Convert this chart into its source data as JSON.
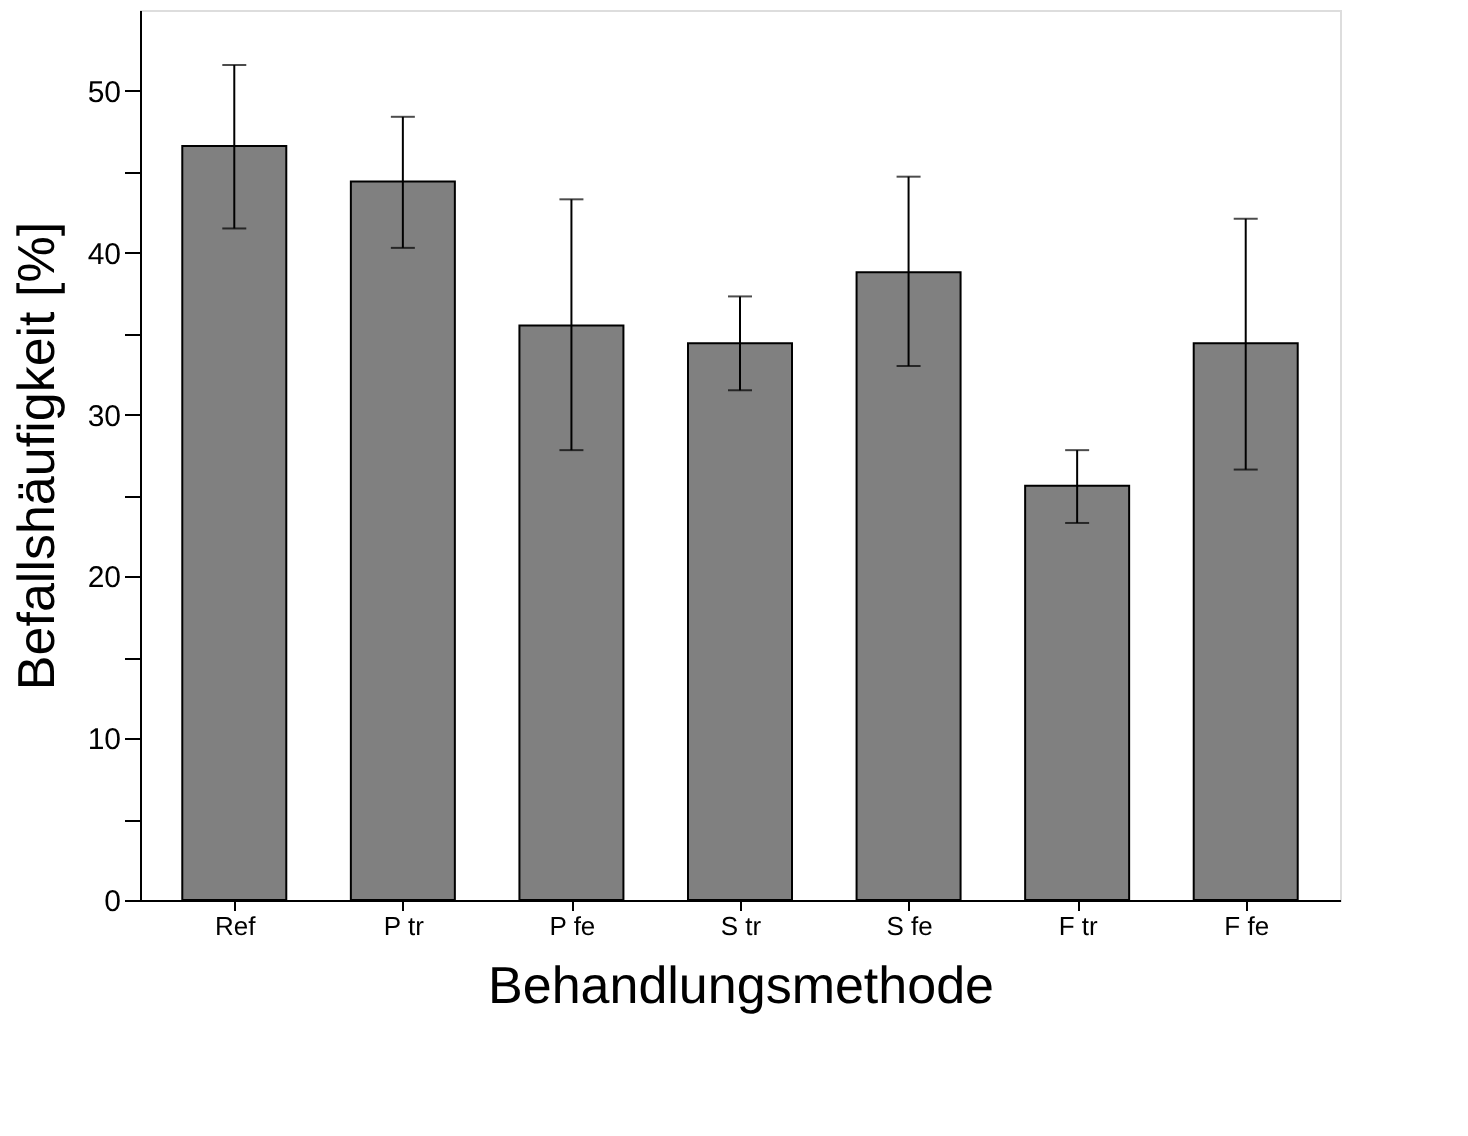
{
  "chart_data": {
    "type": "bar",
    "xlabel": "Behandlungsmethode",
    "ylabel": "Befallshäufigkeit [%]",
    "categories": [
      "Ref",
      "P tr",
      "P fe",
      "S tr",
      "S fe",
      "F tr",
      "F fe"
    ],
    "values": [
      46.6,
      44.4,
      35.5,
      34.4,
      38.8,
      25.6,
      34.4
    ],
    "errors": [
      [
        41.5,
        51.6
      ],
      [
        40.3,
        48.4
      ],
      [
        27.8,
        43.3
      ],
      [
        31.5,
        37.3
      ],
      [
        33.0,
        44.7
      ],
      [
        23.3,
        27.8
      ],
      [
        26.6,
        42.1
      ]
    ],
    "color": "#808080",
    "ylim": [
      0,
      55
    ],
    "yticks": [
      0,
      {
        "value": 5,
        "label": null
      },
      10,
      {
        "value": 15,
        "label": null
      },
      20,
      {
        "value": 25,
        "label": null
      },
      30,
      {
        "value": 35,
        "label": null
      },
      40,
      {
        "value": 45,
        "label": null
      },
      50
    ],
    "grid": false
  }
}
